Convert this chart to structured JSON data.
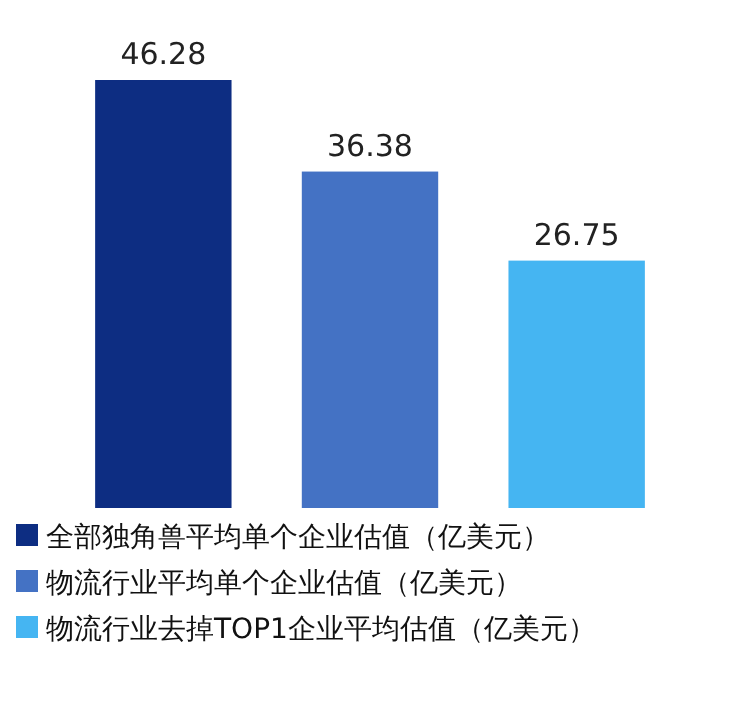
{
  "chart_data": {
    "type": "bar",
    "categories": [
      null,
      null,
      null
    ],
    "stacked": true,
    "series": [
      {
        "name": "全部独角兽平均单个企业估值（亿美元）",
        "color": "#0d2d82",
        "values": [
          46.28,
          null,
          null
        ]
      },
      {
        "name": "物流行业平均单个企业估值（亿美元）",
        "color": "#4472c4",
        "values": [
          null,
          36.38,
          null
        ]
      },
      {
        "name": "物流行业去掉TOP1企业平均估值（亿美元）",
        "color": "#45b5f2",
        "values": [
          null,
          null,
          26.75
        ]
      }
    ],
    "data_labels": true,
    "legend": "bottom",
    "grid": false
  }
}
